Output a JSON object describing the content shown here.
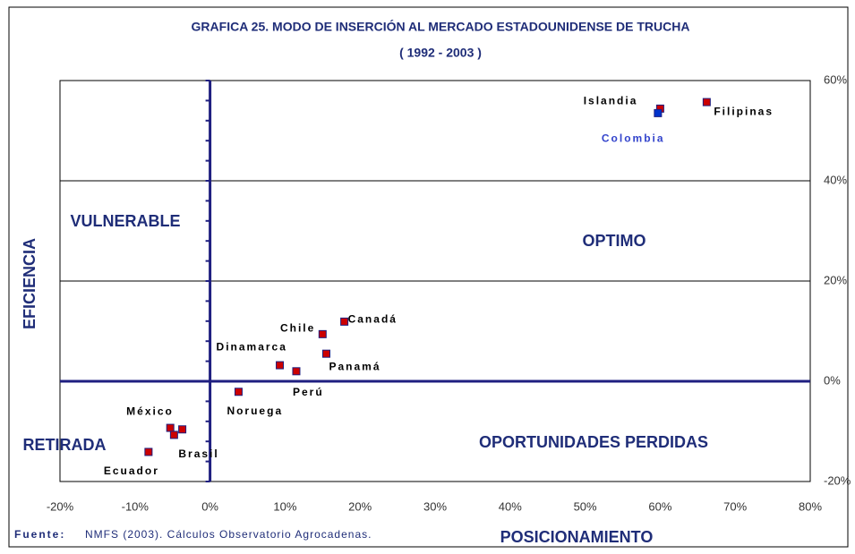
{
  "chart_data": {
    "type": "scatter",
    "title": "GRAFICA 25. MODO DE INSERCIÓN AL MERCADO ESTADOUNIDENSE DE TRUCHA",
    "subtitle": "( 1992 - 2003 )",
    "x_label": "POSICIONAMIENTO",
    "y_label": "EFICIENCIA",
    "source_label": "Fuente:",
    "source_text": "NMFS (2003). Cálculos Observatorio Agrocadenas.",
    "quadrants": [
      "VULNERABLE",
      "OPTIMO",
      "RETIRADA",
      "OPORTUNIDADES PERDIDAS"
    ],
    "xlim": [
      -20,
      80
    ],
    "ylim": [
      -20,
      60
    ],
    "xticks": [
      {
        "value": -20,
        "label": "-20%"
      },
      {
        "value": -10,
        "label": "-10%"
      },
      {
        "value": 0,
        "label": "0%"
      },
      {
        "value": 10,
        "label": "10%"
      },
      {
        "value": 20,
        "label": "20%"
      },
      {
        "value": 30,
        "label": "30%"
      },
      {
        "value": 40,
        "label": "40%"
      },
      {
        "value": 50,
        "label": "50%"
      },
      {
        "value": 60,
        "label": "60%"
      },
      {
        "value": 70,
        "label": "70%"
      },
      {
        "value": 80,
        "label": "80%"
      }
    ],
    "yticks": [
      {
        "value": -20,
        "label": "-20%"
      },
      {
        "value": 0,
        "label": "0%"
      },
      {
        "value": 20,
        "label": "20%"
      },
      {
        "value": 40,
        "label": "40%"
      },
      {
        "value": 60,
        "label": "60%"
      }
    ],
    "grid": true,
    "series": [
      {
        "color": "#cc0000",
        "label_color": "#000000",
        "labels": [
          "Islandia",
          "Filipinas",
          "Canadá",
          "Chile",
          "Panamá",
          "Dinamarca",
          "Perú",
          "Noruega",
          "México",
          "Brasil",
          null,
          "Ecuador"
        ],
        "x": [
          60.0,
          66.2,
          17.9,
          15.0,
          15.5,
          9.3,
          11.5,
          3.8,
          -5.3,
          -4.8,
          -3.7,
          -8.2
        ],
        "values": [
          54.4,
          55.7,
          11.9,
          9.4,
          5.5,
          3.2,
          2.0,
          -2.1,
          -9.3,
          -10.7,
          -9.6,
          -14.1
        ]
      },
      {
        "color": "#0033cc",
        "label_color": "#3344cc",
        "labels": [
          "Colombia"
        ],
        "x": [
          59.7
        ],
        "values": [
          53.5
        ]
      }
    ]
  }
}
